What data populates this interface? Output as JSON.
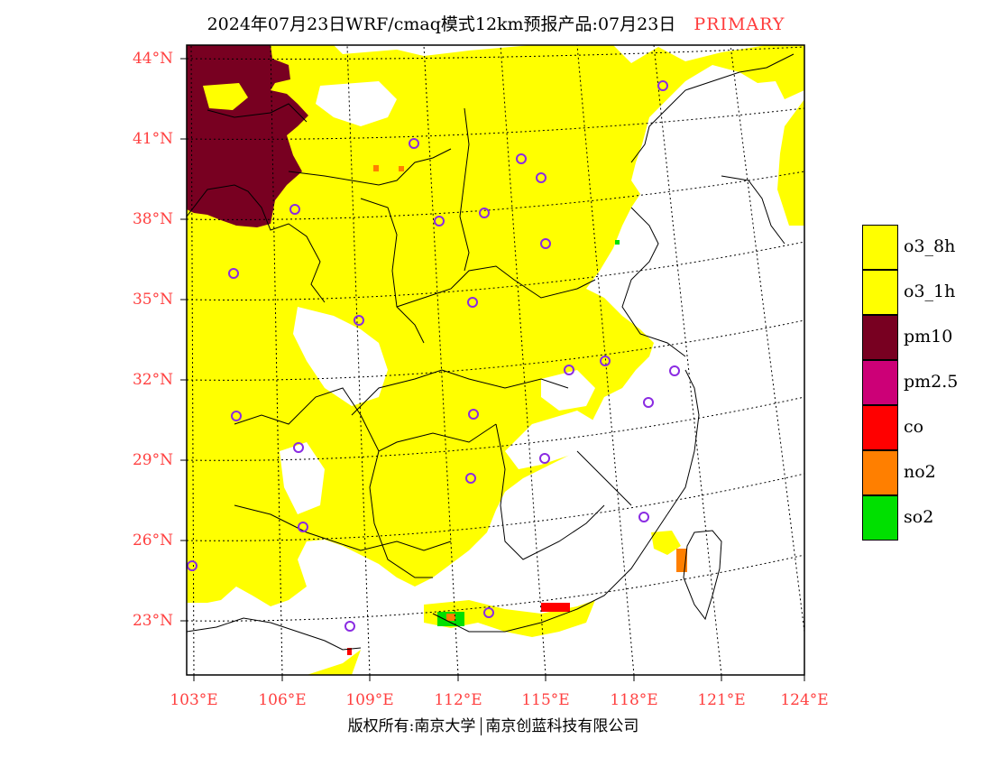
{
  "header": {
    "title": "2024年07月23日WRF/cmaq模式12km预报产品:07月23日",
    "tag": "PRIMARY"
  },
  "map": {
    "lat_labels": [
      "44°N",
      "41°N",
      "38°N",
      "35°N",
      "32°N",
      "29°N",
      "26°N",
      "23°N"
    ],
    "lon_labels": [
      "103°E",
      "106°E",
      "109°E",
      "112°E",
      "115°E",
      "118°E",
      "121°E",
      "124°E"
    ],
    "lat_range": [
      21,
      44.5
    ],
    "lon_range": [
      103,
      124
    ],
    "colors": {
      "o3": "#ffff00",
      "pm10": "#780021",
      "co": "#ff0000",
      "no2": "#ff7f00",
      "so2": "#00e000",
      "station_marker": "#8a2be2",
      "axis_label": "#ff4040"
    }
  },
  "legend": {
    "items": [
      {
        "label": "o3_8h",
        "color": "#ffff00"
      },
      {
        "label": "o3_1h",
        "color": "#ffff00"
      },
      {
        "label": "pm10",
        "color": "#780021"
      },
      {
        "label": "pm2.5",
        "color": "#cc0077"
      },
      {
        "label": "co",
        "color": "#ff0000"
      },
      {
        "label": "no2",
        "color": "#ff7f00"
      },
      {
        "label": "so2",
        "color": "#00e000"
      }
    ]
  },
  "footer": {
    "left": "版权所有:南京大学",
    "right": "南京创蓝科技有限公司"
  }
}
